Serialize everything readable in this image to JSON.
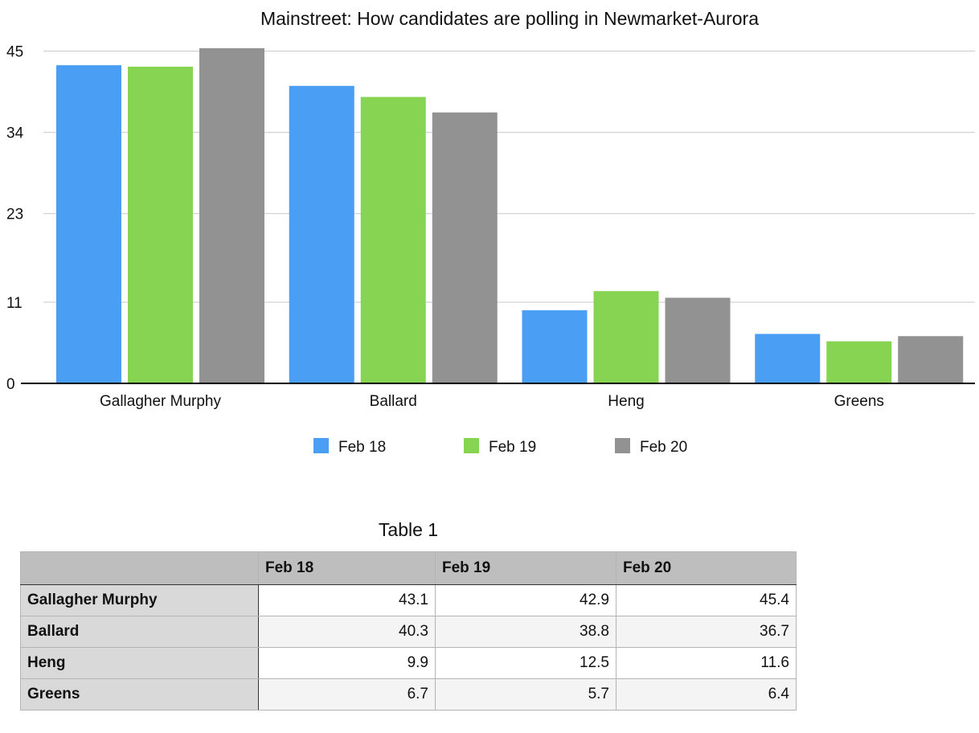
{
  "colors": {
    "Feb 18": "#4a9ff5",
    "Feb 19": "#86d452",
    "Feb 20": "#929292",
    "gridline": "#c8c8c8",
    "axis": "#000000"
  },
  "chart_data": {
    "type": "bar",
    "title": "Mainstreet: How candidates are polling in Newmarket-Aurora",
    "categories": [
      "Gallagher Murphy",
      "Ballard",
      "Heng",
      "Greens"
    ],
    "series": [
      {
        "name": "Feb 18",
        "values": [
          43.1,
          40.3,
          9.9,
          6.7
        ]
      },
      {
        "name": "Feb 19",
        "values": [
          42.9,
          38.8,
          12.5,
          5.7
        ]
      },
      {
        "name": "Feb 20",
        "values": [
          45.4,
          36.7,
          11.6,
          6.4
        ]
      }
    ],
    "yticks": [
      "0",
      "11",
      "23",
      "34",
      "45"
    ],
    "ylim": [
      0,
      45.4
    ],
    "xlabel": "",
    "ylabel": "",
    "grid": true,
    "legend_position": "bottom"
  },
  "table": {
    "title": "Table 1",
    "headers": [
      "",
      "Feb 18",
      "Feb 19",
      "Feb 20"
    ],
    "rows": [
      {
        "label": "Gallagher Murphy",
        "values": [
          "43.1",
          "42.9",
          "45.4"
        ]
      },
      {
        "label": "Ballard",
        "values": [
          "40.3",
          "38.8",
          "36.7"
        ]
      },
      {
        "label": "Heng",
        "values": [
          "9.9",
          "12.5",
          "11.6"
        ]
      },
      {
        "label": "Greens",
        "values": [
          "6.7",
          "5.7",
          "6.4"
        ]
      }
    ]
  }
}
